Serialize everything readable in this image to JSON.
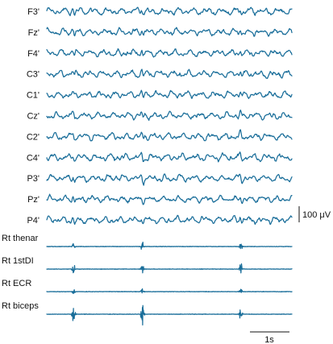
{
  "chart_data": {
    "type": "line",
    "trace_color": "#1a6e9a",
    "eeg_channels": [
      "F3'",
      "Fz'",
      "F4'",
      "C3'",
      "C1'",
      "Cz'",
      "C2'",
      "C4'",
      "P3'",
      "Pz'",
      "P4'"
    ],
    "emg_channels": [
      "Rt thenar",
      "Rt 1stDI",
      "Rt ECR",
      "Rt biceps"
    ],
    "duration_s": 8.2,
    "myoclonic_jerk_times_s": [
      0.9,
      3.2,
      6.5
    ],
    "amplitude_scale": {
      "label": "100 μV",
      "value": 100,
      "unit": "μV"
    },
    "time_scale": {
      "label": "1s",
      "value": 1,
      "unit": "s"
    }
  }
}
